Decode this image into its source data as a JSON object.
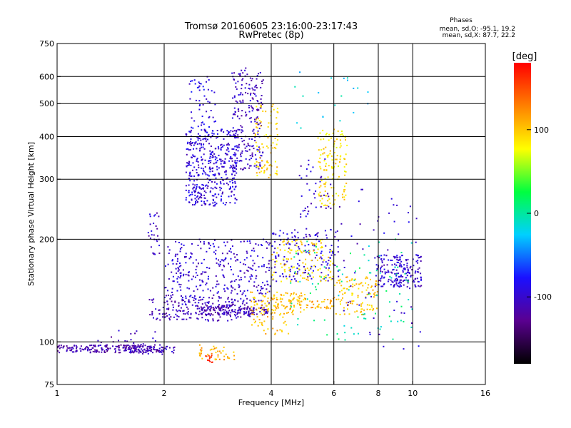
{
  "chart_data": {
    "type": "scatter",
    "title": "Tromsø 20160605 23:16:00-23:17:43",
    "subtitle": "RwPretec (8p)",
    "xlabel": "Frequency [MHz]",
    "ylabel": "Stationary phase Virtual Height [km]",
    "x_scale": "log2",
    "y_scale": "log",
    "xlim": [
      1,
      16
    ],
    "ylim": [
      75,
      750
    ],
    "x_ticks": [
      1,
      2,
      4,
      6,
      8,
      10,
      16
    ],
    "y_ticks": [
      75,
      100,
      200,
      300,
      400,
      500,
      600,
      750
    ],
    "grid": true,
    "phase_info": {
      "title": "Phases",
      "line_o": "mean, sd,O: -95.1, 19.2",
      "line_x": "mean, sd,X:  87.7, 22.2"
    },
    "colorbar": {
      "label": "[deg]",
      "range": [
        -180,
        180
      ],
      "ticks": [
        100,
        0,
        -100
      ],
      "colors": [
        "#000000",
        "#5a0090",
        "#1a10ff",
        "#00d0ff",
        "#00ff40",
        "#ffff00",
        "#ff8000",
        "#ff0000"
      ]
    },
    "series": [
      {
        "clusters": [
          {
            "f": [
              1.0,
              2.0
            ],
            "h": [
              93,
              98
            ],
            "phase": -115,
            "n": 220
          },
          {
            "f": [
              1.6,
              2.2
            ],
            "h": [
              92,
              97
            ],
            "phase": -105,
            "n": 40
          },
          {
            "f": [
              1.3,
              1.9
            ],
            "h": [
              98,
              108
            ],
            "phase": -110,
            "n": 18
          },
          {
            "f": [
              1.8,
              1.95
            ],
            "h": [
              180,
              240
            ],
            "phase": -105,
            "n": 28
          },
          {
            "f": [
              2.3,
              3.2
            ],
            "h": [
              250,
              420
            ],
            "phase": -95,
            "n": 420
          },
          {
            "f": [
              2.35,
              2.8
            ],
            "h": [
              400,
              600
            ],
            "phase": -90,
            "n": 60
          },
          {
            "f": [
              3.1,
              3.8
            ],
            "h": [
              320,
              640
            ],
            "phase": -105,
            "n": 230
          },
          {
            "f": [
              3.6,
              4.2
            ],
            "h": [
              300,
              500
            ],
            "phase": 95,
            "n": 90
          },
          {
            "f": [
              2.0,
              4.0
            ],
            "h": [
              120,
              200
            ],
            "phase": -100,
            "n": 380
          },
          {
            "f": [
              1.8,
              3.5
            ],
            "h": [
              115,
              135
            ],
            "phase": -110,
            "n": 160
          },
          {
            "f": [
              2.5,
              4.0
            ],
            "h": [
              120,
              128
            ],
            "phase": -115,
            "n": 120
          },
          {
            "f": [
              3.5,
              5.0
            ],
            "h": [
              120,
              140
            ],
            "phase": 100,
            "n": 110
          },
          {
            "f": [
              4.0,
              6.0
            ],
            "h": [
              125,
              135
            ],
            "phase": 110,
            "n": 60
          },
          {
            "f": [
              4.0,
              6.2
            ],
            "h": [
              150,
              215
            ],
            "phase": -95,
            "n": 160
          },
          {
            "f": [
              4.0,
              6.0
            ],
            "h": [
              150,
              200
            ],
            "phase": 95,
            "n": 120
          },
          {
            "f": [
              5.4,
              6.6
            ],
            "h": [
              250,
              420
            ],
            "phase": 90,
            "n": 130
          },
          {
            "f": [
              4.8,
              5.9
            ],
            "h": [
              230,
              350
            ],
            "phase": -100,
            "n": 40
          },
          {
            "f": [
              6.0,
              8.0
            ],
            "h": [
              120,
              155
            ],
            "phase": 100,
            "n": 110
          },
          {
            "f": [
              7.8,
              10.6
            ],
            "h": [
              145,
              180
            ],
            "phase": -100,
            "n": 190
          },
          {
            "f": [
              4.5,
              10.0
            ],
            "h": [
              100,
              200
            ],
            "phase": 0,
            "n": 90
          },
          {
            "f": [
              6.2,
              10.5
            ],
            "h": [
              95,
              280
            ],
            "phase": -100,
            "n": 60
          },
          {
            "f": [
              2.5,
              3.2
            ],
            "h": [
              88,
              98
            ],
            "phase": 110,
            "n": 40
          },
          {
            "f": [
              2.6,
              2.75
            ],
            "h": [
              87,
              92
            ],
            "phase": 165,
            "n": 12
          },
          {
            "f": [
              3.5,
              4.5
            ],
            "h": [
              105,
              120
            ],
            "phase": 105,
            "n": 30
          },
          {
            "f": [
              4.2,
              7.5
            ],
            "h": [
              400,
              620
            ],
            "phase": -20,
            "n": 20
          }
        ]
      }
    ]
  }
}
